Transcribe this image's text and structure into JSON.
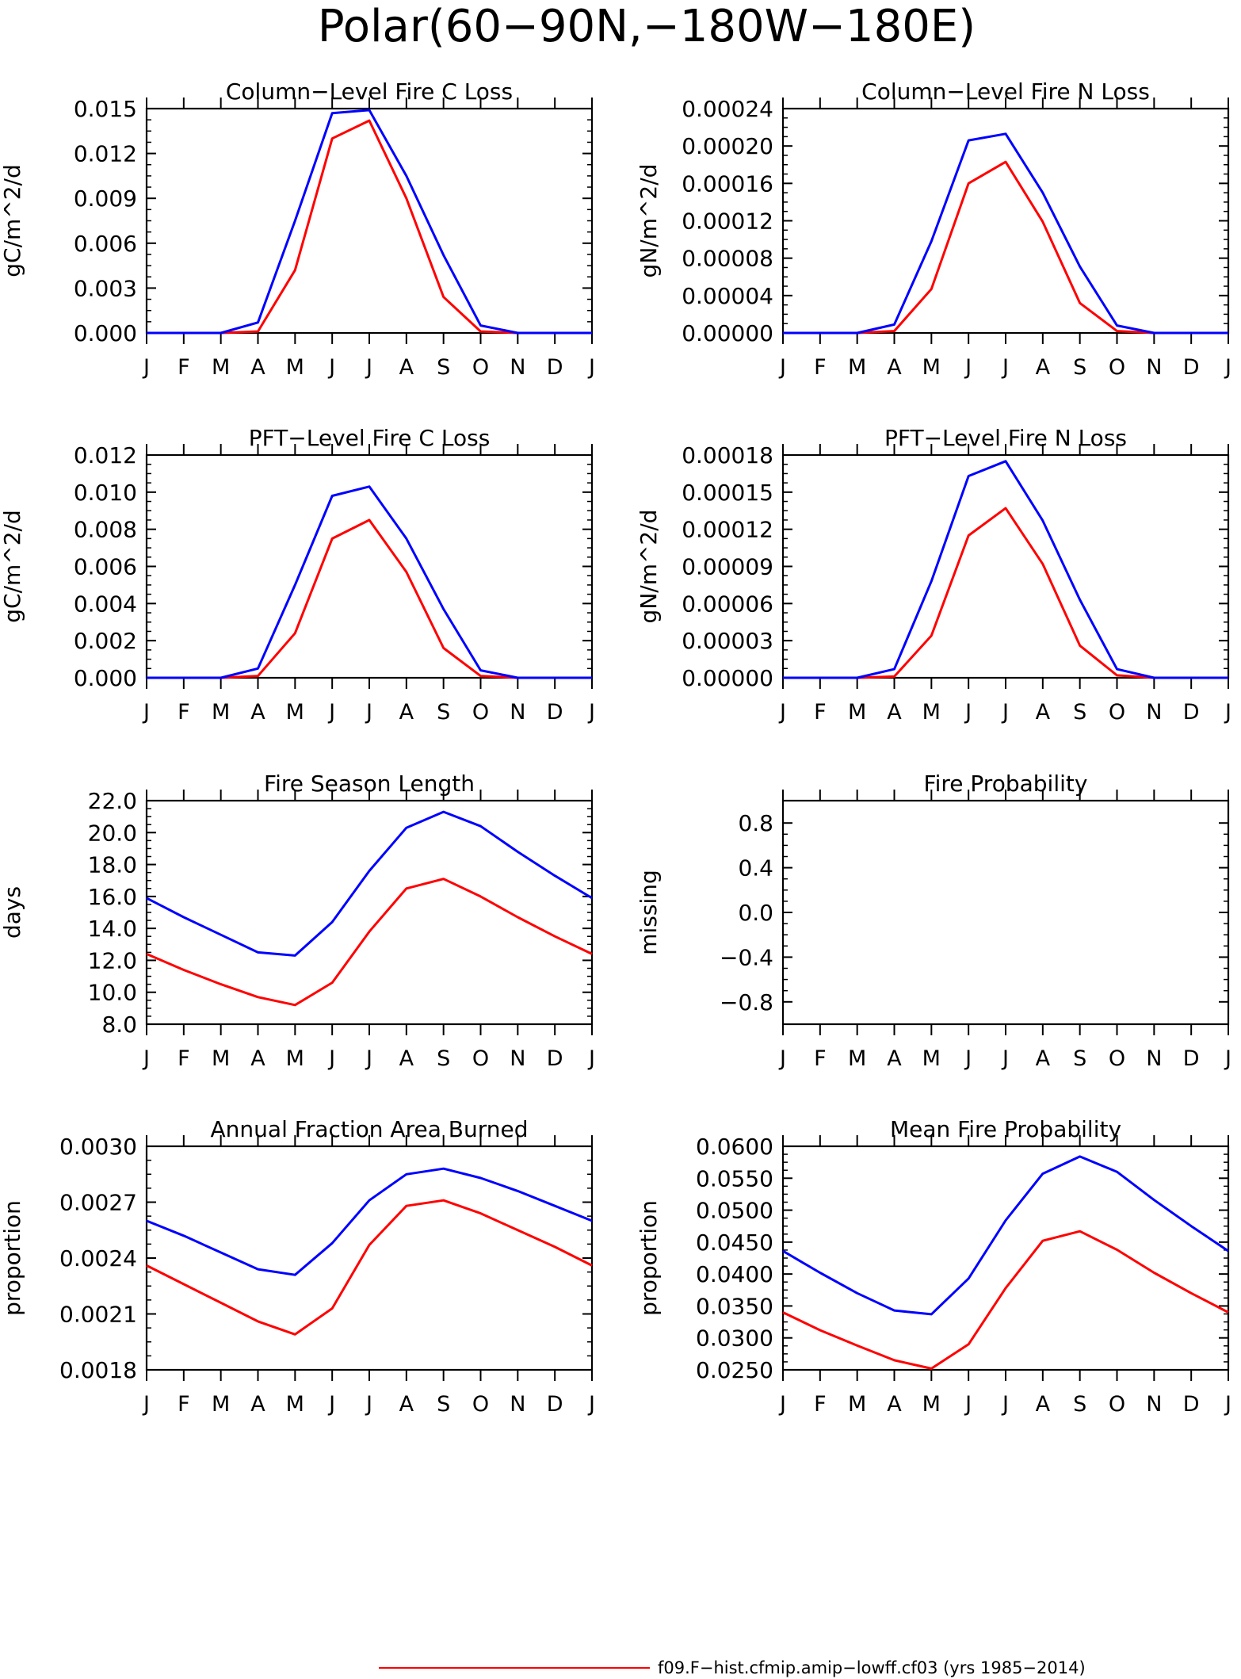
{
  "figure": {
    "title": "Polar(60−90N,−180W−180E)",
    "legend": {
      "label": "f09.F−hist.cfmip.amip−lowff.cf03 (yrs 1985−2014)",
      "color": "#ff0000"
    }
  },
  "colors": {
    "series_red": "#ff0000",
    "series_blue": "#0000ff",
    "axes": "#000000"
  },
  "months": [
    "J",
    "F",
    "M",
    "A",
    "M",
    "J",
    "J",
    "A",
    "S",
    "O",
    "N",
    "D",
    "J"
  ],
  "chart_data": [
    {
      "id": "col-c",
      "type": "line",
      "title": "Column−Level Fire C Loss",
      "ylabel": "gC/m^2/d",
      "ylim": [
        0,
        0.015
      ],
      "yticks": [
        "0.000",
        "0.003",
        "0.006",
        "0.009",
        "0.012",
        "0.015"
      ],
      "series": [
        {
          "color": "#ff0000",
          "values": [
            0,
            0,
            0,
            0.0001,
            0.0042,
            0.013,
            0.0142,
            0.009,
            0.0024,
            0.0001,
            0,
            0,
            0
          ]
        },
        {
          "color": "#0000ff",
          "values": [
            0,
            0,
            0,
            0.0007,
            0.0075,
            0.0147,
            0.0149,
            0.0105,
            0.0052,
            0.0005,
            0,
            0,
            0
          ]
        }
      ]
    },
    {
      "id": "col-n",
      "type": "line",
      "title": "Column−Level Fire N Loss",
      "ylabel": "gN/m^2/d",
      "ylim": [
        0,
        0.00024
      ],
      "yticks": [
        "0.00000",
        "0.00004",
        "0.00008",
        "0.00012",
        "0.00016",
        "0.00020",
        "0.00024"
      ],
      "series": [
        {
          "color": "#ff0000",
          "values": [
            0,
            0,
            0,
            2e-06,
            4.7e-05,
            0.00016,
            0.000183,
            0.000119,
            3.2e-05,
            2e-06,
            0,
            0,
            0
          ]
        },
        {
          "color": "#0000ff",
          "values": [
            0,
            0,
            0,
            9e-06,
            9.8e-05,
            0.000206,
            0.000213,
            0.00015,
            7.1e-05,
            8e-06,
            0,
            0,
            0
          ]
        }
      ]
    },
    {
      "id": "pft-c",
      "type": "line",
      "title": "PFT−Level Fire C Loss",
      "ylabel": "gC/m^2/d",
      "ylim": [
        0,
        0.012
      ],
      "yticks": [
        "0.000",
        "0.002",
        "0.004",
        "0.006",
        "0.008",
        "0.010",
        "0.012"
      ],
      "series": [
        {
          "color": "#ff0000",
          "values": [
            0,
            0,
            0,
            0.0001,
            0.0024,
            0.0075,
            0.0085,
            0.0057,
            0.0016,
            0.0001,
            0,
            0,
            0
          ]
        },
        {
          "color": "#0000ff",
          "values": [
            0,
            0,
            0,
            0.0005,
            0.005,
            0.0098,
            0.0103,
            0.0075,
            0.0037,
            0.0004,
            0,
            0,
            0
          ]
        }
      ]
    },
    {
      "id": "pft-n",
      "type": "line",
      "title": "PFT−Level Fire N Loss",
      "ylabel": "gN/m^2/d",
      "ylim": [
        0,
        0.00018
      ],
      "yticks": [
        "0.00000",
        "0.00003",
        "0.00006",
        "0.00009",
        "0.00012",
        "0.00015",
        "0.00018"
      ],
      "series": [
        {
          "color": "#ff0000",
          "values": [
            0,
            0,
            0,
            1e-06,
            3.4e-05,
            0.000115,
            0.000137,
            9.2e-05,
            2.6e-05,
            2e-06,
            0,
            0,
            0
          ]
        },
        {
          "color": "#0000ff",
          "values": [
            0,
            0,
            0,
            7e-06,
            7.8e-05,
            0.000163,
            0.000175,
            0.000127,
            6.3e-05,
            7e-06,
            0,
            0,
            0
          ]
        }
      ]
    },
    {
      "id": "season",
      "type": "line",
      "title": "Fire Season Length",
      "ylabel": "days",
      "ylim": [
        8.0,
        22.0
      ],
      "yticks": [
        "8.0",
        "10.0",
        "12.0",
        "14.0",
        "16.0",
        "18.0",
        "20.0",
        "22.0"
      ],
      "series": [
        {
          "color": "#ff0000",
          "values": [
            12.4,
            11.4,
            10.5,
            9.7,
            9.2,
            10.6,
            13.8,
            16.5,
            17.1,
            16.0,
            14.7,
            13.5,
            12.4
          ]
        },
        {
          "color": "#0000ff",
          "values": [
            15.9,
            14.7,
            13.6,
            12.5,
            12.3,
            14.4,
            17.6,
            20.3,
            21.3,
            20.4,
            18.8,
            17.3,
            15.9
          ]
        }
      ]
    },
    {
      "id": "prob",
      "type": "line",
      "title": "Fire Probability",
      "ylabel": "missing",
      "ylim": [
        -1.0,
        1.0
      ],
      "yticks": [
        "−0.8",
        "−0.4",
        "0.0",
        "0.4",
        "0.8"
      ],
      "series": []
    },
    {
      "id": "area",
      "type": "line",
      "title": "Annual Fraction Area Burned",
      "ylabel": "proportion",
      "ylim": [
        0.0018,
        0.003
      ],
      "yticks": [
        "0.0018",
        "0.0021",
        "0.0024",
        "0.0027",
        "0.0030"
      ],
      "series": [
        {
          "color": "#ff0000",
          "values": [
            0.00236,
            0.00226,
            0.00216,
            0.00206,
            0.00199,
            0.00213,
            0.00247,
            0.00268,
            0.00271,
            0.00264,
            0.00255,
            0.00246,
            0.00236
          ]
        },
        {
          "color": "#0000ff",
          "values": [
            0.0026,
            0.00252,
            0.00243,
            0.00234,
            0.00231,
            0.00248,
            0.00271,
            0.00285,
            0.00288,
            0.00283,
            0.00276,
            0.00268,
            0.0026
          ]
        }
      ]
    },
    {
      "id": "meanprob",
      "type": "line",
      "title": "Mean Fire Probability",
      "ylabel": "proportion",
      "ylim": [
        0.025,
        0.06
      ],
      "yticks": [
        "0.0250",
        "0.0300",
        "0.0350",
        "0.0400",
        "0.0450",
        "0.0500",
        "0.0550",
        "0.0600"
      ],
      "series": [
        {
          "color": "#ff0000",
          "values": [
            0.034,
            0.0312,
            0.0288,
            0.0265,
            0.0252,
            0.029,
            0.0378,
            0.0452,
            0.0467,
            0.0438,
            0.0402,
            0.037,
            0.034
          ]
        },
        {
          "color": "#0000ff",
          "values": [
            0.0436,
            0.0402,
            0.037,
            0.0343,
            0.0337,
            0.0393,
            0.0484,
            0.0557,
            0.0584,
            0.056,
            0.0516,
            0.0475,
            0.0436
          ]
        }
      ]
    }
  ]
}
